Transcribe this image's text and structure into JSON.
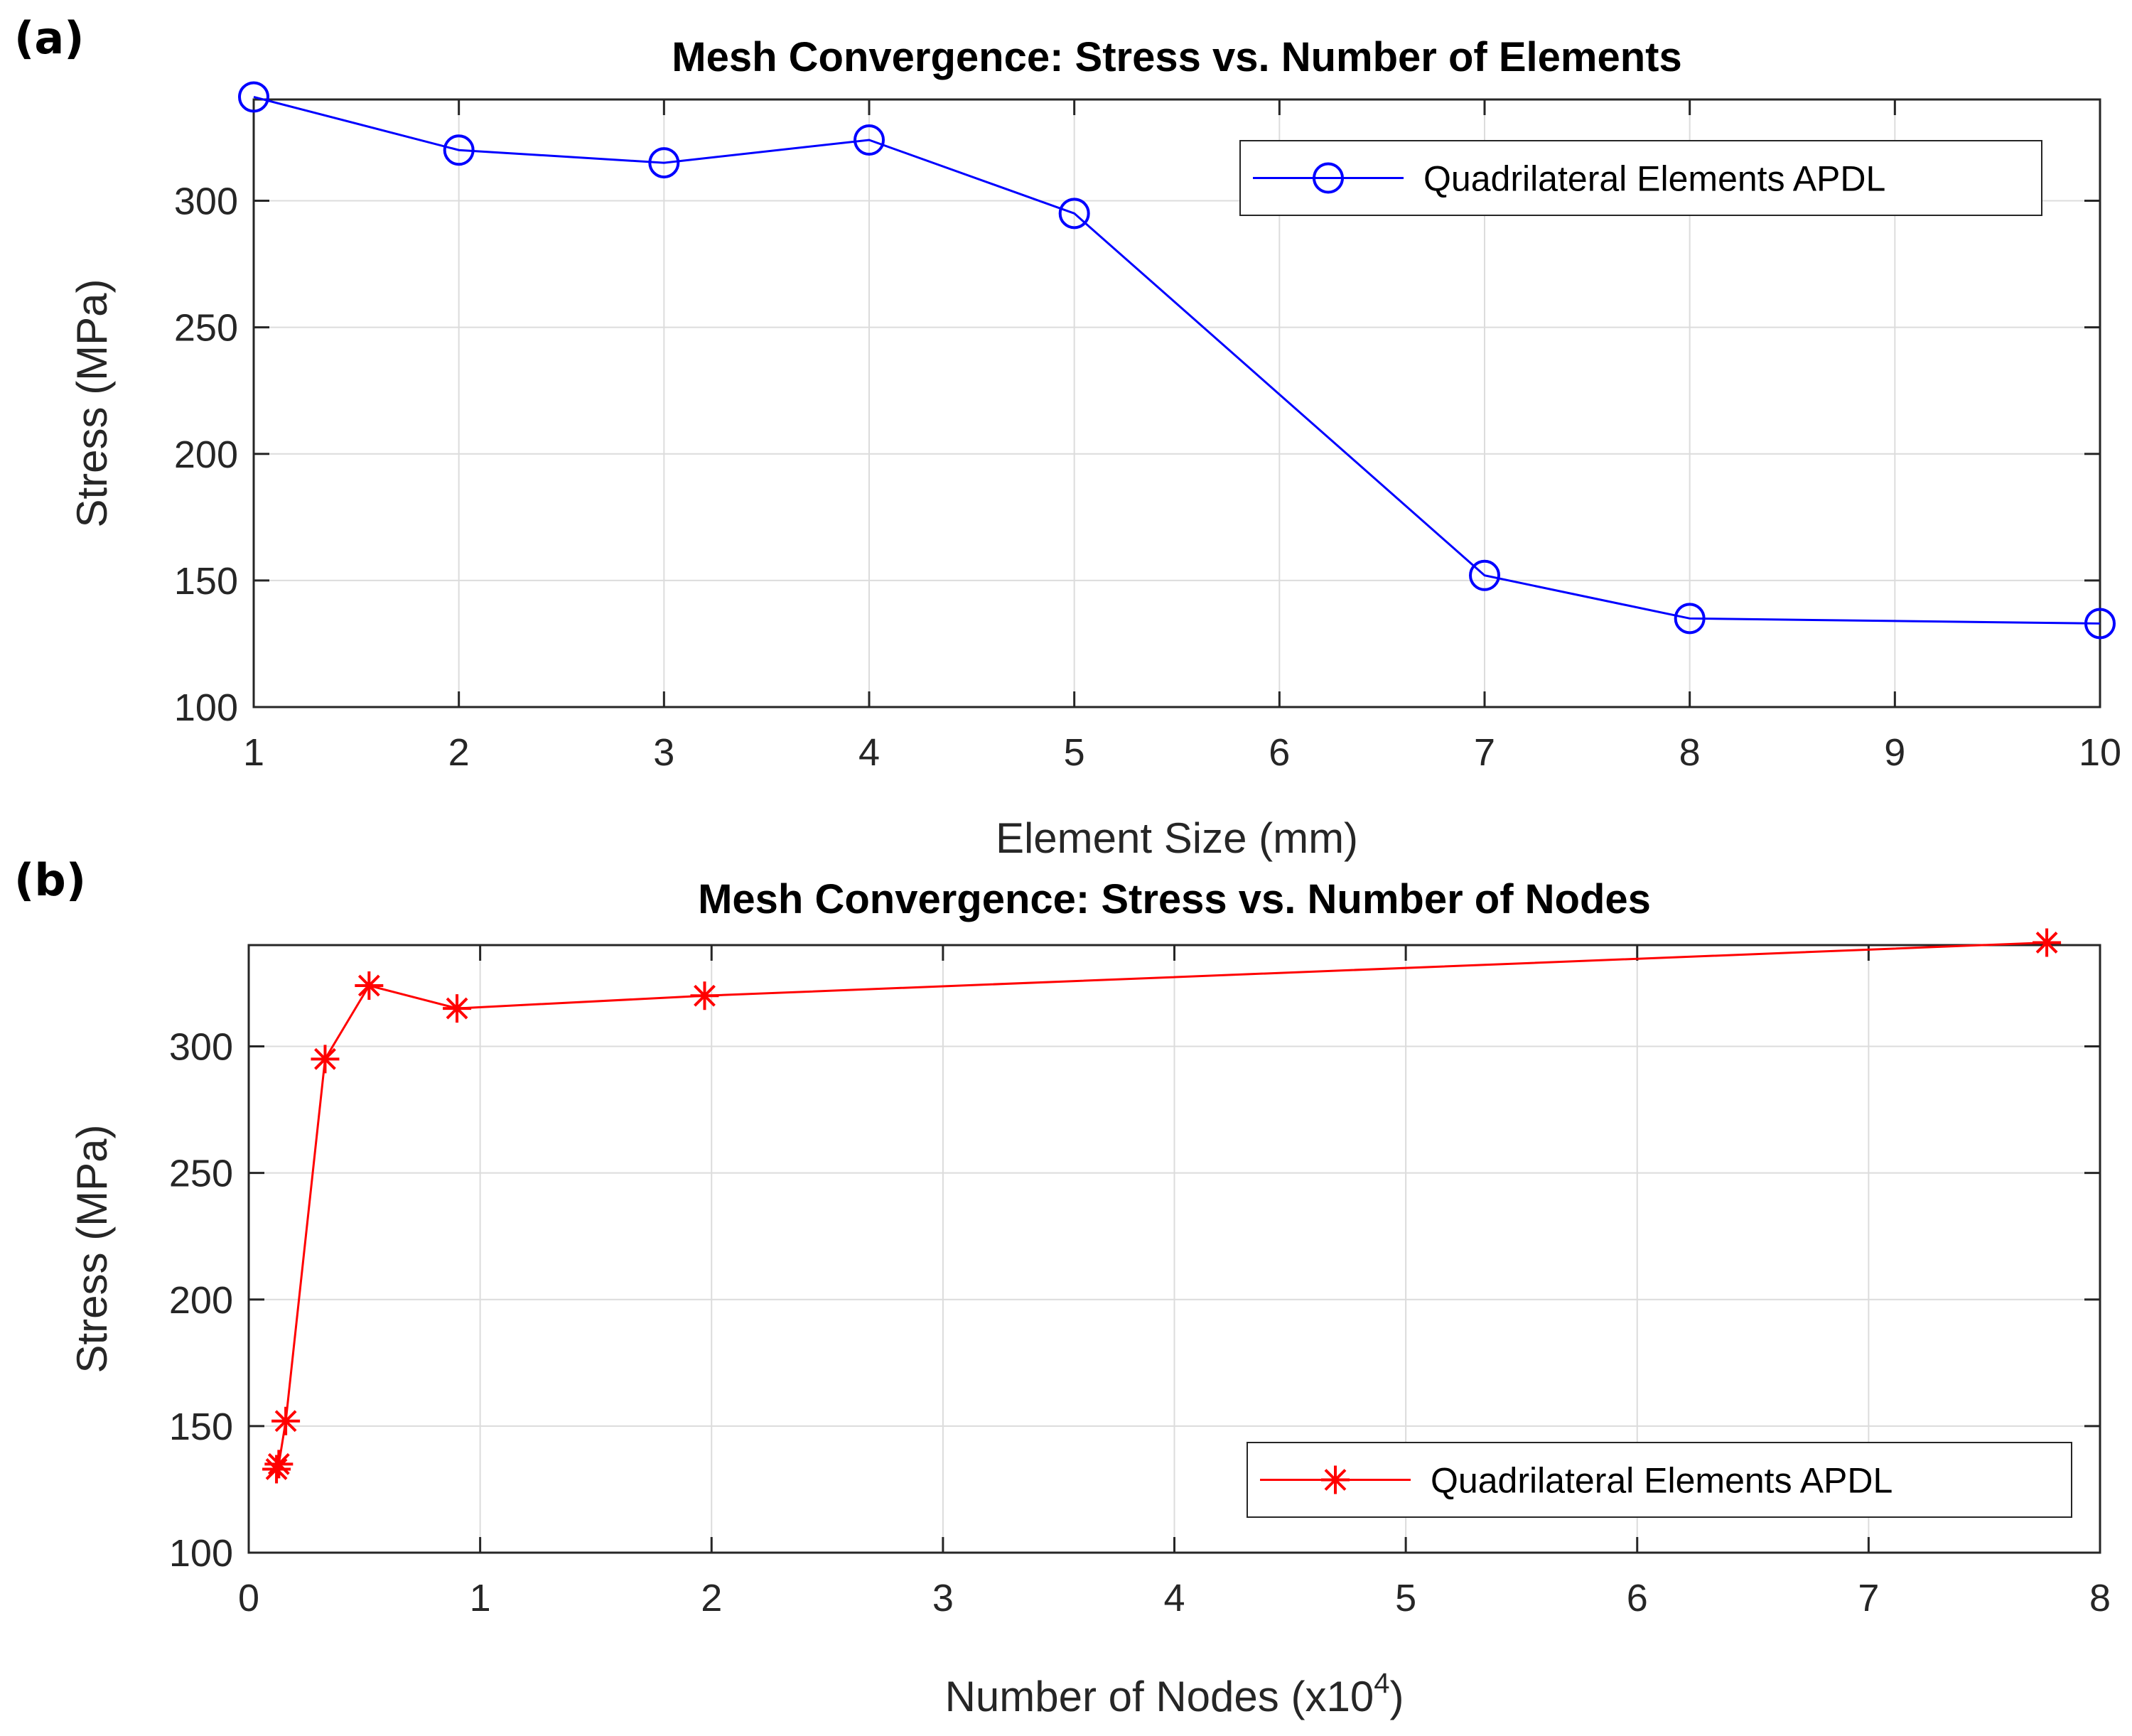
{
  "chart_data": [
    {
      "panel": "(a)",
      "type": "line",
      "title": "Mesh Convergence: Stress vs. Number of Elements",
      "xlabel": "Element Size (mm)",
      "ylabel": "Stress (MPa)",
      "xlim": [
        1,
        10
      ],
      "ylim": [
        100,
        340
      ],
      "xticks": [
        1,
        2,
        3,
        4,
        5,
        6,
        7,
        8,
        9,
        10
      ],
      "yticks": [
        100,
        150,
        200,
        250,
        300
      ],
      "grid": true,
      "legend_position": "top-right",
      "series": [
        {
          "name": "Quadrilateral Elements APDL",
          "color": "#0000ff",
          "marker": "circle",
          "x": [
            1,
            2,
            3,
            4,
            5,
            7,
            8,
            10
          ],
          "y": [
            341,
            320,
            315,
            324,
            295,
            152,
            135,
            133
          ]
        }
      ]
    },
    {
      "panel": "(b)",
      "type": "line",
      "title": "Mesh Convergence: Stress vs. Number of Nodes",
      "xlabel": "Number of Nodes (x10",
      "xlabel_sup": "4",
      "xlabel_end": ")",
      "ylabel": "Stress (MPa)",
      "xlim": [
        0,
        8
      ],
      "ylim": [
        100,
        340
      ],
      "xticks": [
        0,
        1,
        2,
        3,
        4,
        5,
        6,
        7,
        8
      ],
      "yticks": [
        100,
        150,
        200,
        250,
        300
      ],
      "grid": true,
      "legend_position": "bottom-right",
      "series": [
        {
          "name": "Quadrilateral Elements APDL",
          "color": "#ff0000",
          "marker": "asterisk",
          "x": [
            0.12,
            0.13,
            0.16,
            0.33,
            0.52,
            0.9,
            1.97,
            7.77
          ],
          "y": [
            133,
            135,
            152,
            295,
            324,
            315,
            320,
            341
          ]
        }
      ]
    }
  ]
}
